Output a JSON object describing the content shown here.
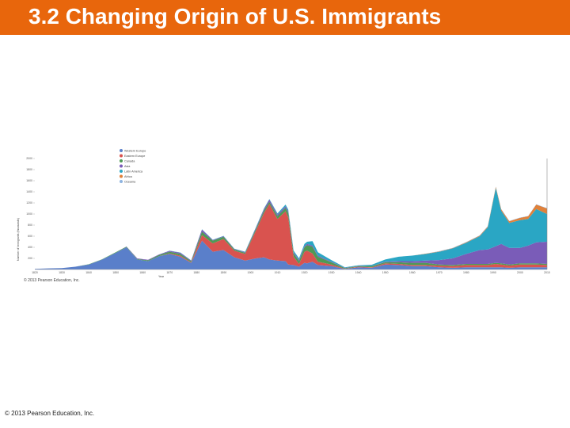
{
  "slide": {
    "title": "3.2 Changing Origin of U.S. Immigrants",
    "footer": "© 2013 Pearson Education, Inc.",
    "title_bar_color": "#e8660c"
  },
  "chart_data": {
    "type": "area",
    "stacked": true,
    "title": "",
    "xlabel": "Year",
    "ylabel": "Number of immigrants (thousands)",
    "ylim": [
      0,
      2000
    ],
    "xlim": [
      1820,
      2010
    ],
    "y_ticks": [
      "200",
      "400",
      "600",
      "800",
      "1000",
      "1200",
      "1400",
      "1600",
      "1800",
      "2000"
    ],
    "x_ticks": [
      "1820",
      "1830",
      "1840",
      "1850",
      "1860",
      "1870",
      "1880",
      "1890",
      "1900",
      "1910",
      "1920",
      "1930",
      "1940",
      "1950",
      "1960",
      "1970",
      "1980",
      "1990",
      "2000",
      "2010"
    ],
    "copyright": "© 2013 Pearson Education, Inc.",
    "legend_position": "top-left",
    "x": [
      1820,
      1825,
      1830,
      1835,
      1840,
      1845,
      1850,
      1854,
      1858,
      1862,
      1866,
      1870,
      1874,
      1878,
      1882,
      1886,
      1890,
      1894,
      1898,
      1902,
      1905,
      1907,
      1910,
      1913,
      1914,
      1916,
      1918,
      1920,
      1921,
      1923,
      1925,
      1930,
      1935,
      1940,
      1945,
      1950,
      1955,
      1960,
      1965,
      1970,
      1975,
      1980,
      1985,
      1988,
      1991,
      1993,
      1996,
      2000,
      2003,
      2006,
      2010
    ],
    "series": [
      {
        "name": "Western Europe",
        "color": "#5a7fca",
        "values": [
          10,
          20,
          25,
          50,
          90,
          180,
          300,
          400,
          180,
          150,
          240,
          280,
          230,
          120,
          520,
          320,
          350,
          220,
          160,
          200,
          220,
          180,
          160,
          150,
          90,
          80,
          50,
          120,
          110,
          140,
          80,
          60,
          10,
          40,
          30,
          90,
          80,
          60,
          60,
          40,
          30,
          40,
          40,
          40,
          40,
          40,
          30,
          40,
          40,
          40,
          40
        ]
      },
      {
        "name": "Eastern Europe",
        "color": "#d9534f",
        "values": [
          0,
          0,
          0,
          0,
          0,
          0,
          0,
          0,
          0,
          0,
          0,
          10,
          20,
          10,
          100,
          150,
          200,
          120,
          120,
          500,
          800,
          1000,
          750,
          900,
          850,
          150,
          50,
          200,
          230,
          150,
          60,
          30,
          5,
          10,
          10,
          20,
          20,
          20,
          20,
          30,
          30,
          40,
          40,
          40,
          60,
          50,
          40,
          50,
          50,
          50,
          40
        ]
      },
      {
        "name": "Canada",
        "color": "#4e9a55",
        "values": [
          0,
          0,
          0,
          0,
          5,
          5,
          10,
          10,
          10,
          15,
          20,
          30,
          30,
          20,
          60,
          50,
          40,
          20,
          20,
          30,
          40,
          40,
          50,
          60,
          80,
          60,
          50,
          80,
          100,
          120,
          90,
          40,
          10,
          10,
          20,
          20,
          30,
          40,
          40,
          20,
          20,
          20,
          20,
          20,
          20,
          20,
          20,
          20,
          20,
          20,
          20
        ]
      },
      {
        "name": "Asia",
        "color": "#7a5cb8",
        "values": [
          0,
          0,
          0,
          0,
          0,
          0,
          0,
          5,
          10,
          10,
          10,
          15,
          20,
          10,
          40,
          10,
          10,
          10,
          10,
          20,
          30,
          40,
          30,
          30,
          30,
          20,
          20,
          20,
          20,
          20,
          20,
          10,
          5,
          5,
          5,
          10,
          20,
          30,
          40,
          80,
          120,
          180,
          250,
          260,
          300,
          350,
          300,
          280,
          320,
          380,
          400
        ]
      },
      {
        "name": "Latin America",
        "color": "#2aa6c4",
        "values": [
          0,
          0,
          0,
          0,
          0,
          0,
          0,
          0,
          0,
          0,
          0,
          5,
          5,
          5,
          5,
          5,
          5,
          5,
          10,
          10,
          10,
          10,
          20,
          30,
          30,
          30,
          30,
          40,
          40,
          80,
          60,
          30,
          10,
          10,
          20,
          40,
          80,
          100,
          120,
          150,
          180,
          200,
          250,
          400,
          1050,
          600,
          450,
          500,
          480,
          600,
          500
        ]
      },
      {
        "name": "Africa",
        "color": "#e0813a",
        "values": [
          0,
          0,
          0,
          0,
          0,
          0,
          0,
          0,
          0,
          0,
          0,
          0,
          0,
          0,
          0,
          0,
          0,
          0,
          0,
          0,
          0,
          0,
          0,
          0,
          0,
          0,
          0,
          0,
          0,
          0,
          0,
          0,
          0,
          0,
          0,
          0,
          0,
          0,
          5,
          5,
          5,
          10,
          10,
          15,
          20,
          25,
          30,
          40,
          50,
          80,
          100
        ]
      },
      {
        "name": "Oceania",
        "color": "#8fb4e0",
        "values": [
          0,
          0,
          0,
          0,
          0,
          0,
          0,
          0,
          0,
          0,
          0,
          0,
          0,
          0,
          0,
          0,
          0,
          0,
          0,
          0,
          0,
          0,
          0,
          0,
          0,
          0,
          0,
          0,
          0,
          0,
          0,
          0,
          0,
          0,
          0,
          0,
          0,
          0,
          0,
          5,
          5,
          5,
          5,
          5,
          5,
          5,
          5,
          5,
          5,
          5,
          5
        ]
      }
    ]
  }
}
